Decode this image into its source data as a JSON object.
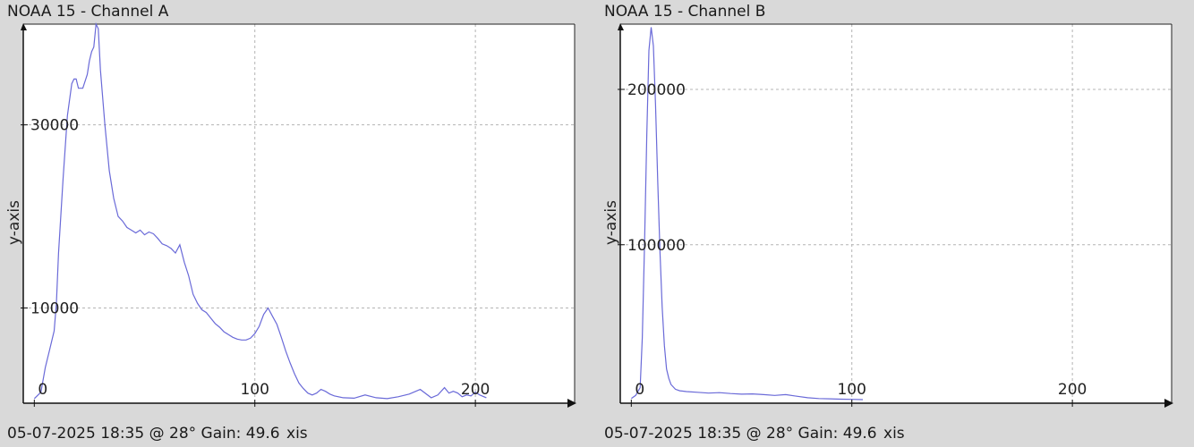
{
  "chart_data": [
    {
      "type": "line",
      "title": "NOAA 15 - Channel A",
      "ylabel": "y-axis",
      "xlabel": "xis",
      "footer": "05-07-2025 18:35 @ 28° Gain: 49.6",
      "grid": true,
      "xlim": [
        -5,
        245
      ],
      "ylim": [
        -400,
        41000
      ],
      "x_ticks": [
        0,
        100,
        200
      ],
      "y_ticks": [
        10000,
        30000
      ],
      "line_color": "#6a6ad8",
      "series": [
        {
          "x": [
            0,
            3,
            5,
            7,
            9,
            10,
            11,
            13,
            15,
            17,
            18,
            19,
            20,
            22,
            24,
            25,
            26,
            27,
            28,
            29,
            30,
            32,
            34,
            36,
            38,
            40,
            42,
            44,
            46,
            48,
            50,
            52,
            54,
            56,
            58,
            60,
            62,
            64,
            66,
            68,
            70,
            72,
            74,
            76,
            78,
            80,
            82,
            84,
            86,
            88,
            90,
            92,
            94,
            96,
            98,
            100,
            102,
            104,
            106,
            108,
            110,
            112,
            114,
            116,
            118,
            120,
            122,
            124,
            126,
            128,
            130,
            132,
            134,
            136,
            140,
            145,
            150,
            155,
            160,
            165,
            170,
            175,
            180,
            183,
            186,
            188,
            190,
            192,
            194,
            196,
            198,
            200,
            202,
            205
          ],
          "y": [
            100,
            800,
            3500,
            5500,
            7500,
            10500,
            16000,
            24000,
            31000,
            34500,
            35000,
            35000,
            34000,
            34000,
            35500,
            37000,
            38000,
            38500,
            41000,
            40500,
            36000,
            30000,
            25000,
            22000,
            20000,
            19500,
            18800,
            18500,
            18200,
            18500,
            18000,
            18300,
            18100,
            17600,
            17000,
            16800,
            16500,
            16000,
            16900,
            15000,
            13500,
            11500,
            10500,
            9800,
            9500,
            8900,
            8300,
            7900,
            7400,
            7100,
            6800,
            6600,
            6500,
            6500,
            6700,
            7200,
            8000,
            9300,
            10000,
            9100,
            8200,
            6800,
            5300,
            4000,
            2800,
            1800,
            1200,
            700,
            500,
            700,
            1100,
            900,
            600,
            400,
            200,
            150,
            500,
            200,
            100,
            300,
            600,
            1100,
            200,
            500,
            1300,
            700,
            900,
            700,
            300,
            500,
            400,
            800,
            500,
            200
          ]
        }
      ]
    },
    {
      "type": "line",
      "title": "NOAA 15 - Channel B",
      "ylabel": "y-axis",
      "xlabel": "xis",
      "footer": "05-07-2025 18:35 @ 28° Gain: 49.6",
      "grid": true,
      "xlim": [
        -5,
        245
      ],
      "ylim": [
        -2000,
        242000
      ],
      "x_ticks": [
        0,
        100,
        200
      ],
      "y_ticks": [
        100000,
        200000
      ],
      "line_color": "#6a6ad8",
      "series": [
        {
          "x": [
            0,
            2,
            4,
            5,
            6,
            7,
            8,
            9,
            10,
            11,
            12,
            13,
            14,
            15,
            16,
            17,
            18,
            20,
            22,
            25,
            30,
            35,
            40,
            45,
            50,
            55,
            60,
            65,
            70,
            75,
            80,
            85,
            90,
            95,
            100,
            105
          ],
          "y": [
            1000,
            3000,
            8000,
            40000,
            100000,
            170000,
            225000,
            240000,
            228000,
            190000,
            140000,
            95000,
            60000,
            35000,
            20000,
            14000,
            10000,
            7000,
            6000,
            5500,
            5000,
            4500,
            4800,
            4200,
            3800,
            4000,
            3500,
            3000,
            3500,
            2500,
            1500,
            1000,
            800,
            600,
            500,
            300
          ]
        }
      ]
    }
  ]
}
